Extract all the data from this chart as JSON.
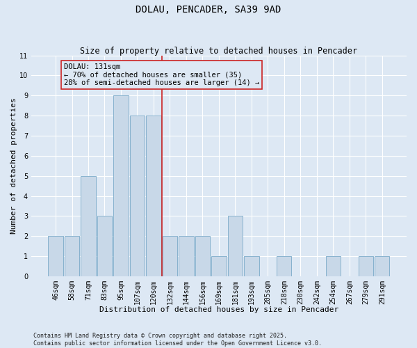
{
  "title": "DOLAU, PENCADER, SA39 9AD",
  "subtitle": "Size of property relative to detached houses in Pencader",
  "xlabel": "Distribution of detached houses by size in Pencader",
  "ylabel": "Number of detached properties",
  "categories": [
    "46sqm",
    "58sqm",
    "71sqm",
    "83sqm",
    "95sqm",
    "107sqm",
    "120sqm",
    "132sqm",
    "144sqm",
    "156sqm",
    "169sqm",
    "181sqm",
    "193sqm",
    "205sqm",
    "218sqm",
    "230sqm",
    "242sqm",
    "254sqm",
    "267sqm",
    "279sqm",
    "291sqm"
  ],
  "values": [
    2,
    2,
    5,
    3,
    9,
    8,
    8,
    2,
    2,
    2,
    1,
    3,
    1,
    0,
    1,
    0,
    0,
    1,
    0,
    1,
    1
  ],
  "bar_color": "#c8d8e8",
  "bar_edgecolor": "#7aaac8",
  "vline_x_idx": 7,
  "vline_color": "#cc2222",
  "annotation_text": "DOLAU: 131sqm\n← 70% of detached houses are smaller (35)\n28% of semi-detached houses are larger (14) →",
  "annotation_box_edgecolor": "#cc2222",
  "annotation_box_facecolor": "#dde8f4",
  "ylim": [
    0,
    11
  ],
  "yticks": [
    0,
    1,
    2,
    3,
    4,
    5,
    6,
    7,
    8,
    9,
    10,
    11
  ],
  "background_color": "#dde8f4",
  "grid_color": "#ffffff",
  "footer": "Contains HM Land Registry data © Crown copyright and database right 2025.\nContains public sector information licensed under the Open Government Licence v3.0.",
  "title_fontsize": 10,
  "subtitle_fontsize": 8.5,
  "xlabel_fontsize": 8,
  "ylabel_fontsize": 8,
  "tick_fontsize": 7,
  "footer_fontsize": 6,
  "annot_fontsize": 7.5
}
